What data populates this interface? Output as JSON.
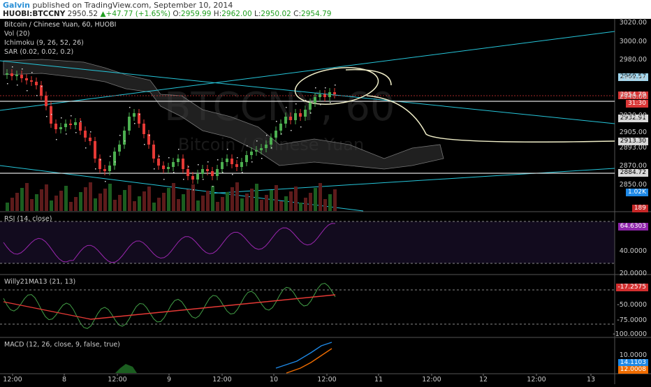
{
  "header": {
    "author": "Galvin",
    "published": "published on TradingView.com, September 10, 2014",
    "symbol": "HUOBI:BTCCNY",
    "last": "2950.52",
    "change": "+47.77 (+1.65%)",
    "o_label": "O:",
    "o": "2959.99",
    "h_label": "H:",
    "h": "2962.00",
    "l_label": "L:",
    "l": "2950.02",
    "c_label": "C:",
    "c": "2954.79"
  },
  "main_pane": {
    "title": "Bitcoin / Chinese Yuan, 60, HUOBI",
    "indicators": [
      "Vol (20)",
      "Ichimoku (9, 26, 52, 26)",
      "SAR (0.02, 0.02, 0.2)"
    ],
    "watermark": "BTCCNY, 60",
    "watermark_sub": "Bitcoin / Chinese Yuan",
    "price_ticks": [
      "3020.00",
      "3000.00",
      "2980.00",
      "2960.00",
      "2940.00",
      "2920.00",
      "2905.00",
      "2893.00",
      "2870.00",
      "2850.00"
    ],
    "price_tags": [
      {
        "text": "2969.57",
        "bg": "#9fd7f0",
        "fg": "#000"
      },
      {
        "text": "2954.79",
        "bg": "#d93636",
        "fg": "#fff"
      },
      {
        "text": "31:30",
        "bg": "#d93636",
        "fg": "#fff"
      },
      {
        "text": "2932.91",
        "bg": "#d9d9d9",
        "fg": "#000"
      },
      {
        "text": "2913.30",
        "bg": "#d9d9d9",
        "fg": "#000"
      },
      {
        "text": "2884.72",
        "bg": "#d9d9d9",
        "fg": "#000"
      },
      {
        "text": "1.02K",
        "bg": "#1e88e5",
        "fg": "#fff"
      },
      {
        "text": "189",
        "bg": "#c62828",
        "fg": "#fff"
      }
    ]
  },
  "rsi_pane": {
    "title": "RSI (14, close)",
    "ticks": [
      "40.0000",
      "20.0000"
    ],
    "value_tag": "64.6303",
    "value_color": "#8e24aa"
  },
  "willy_pane": {
    "title": "Willy21MA13 (21, 13)",
    "ticks": [
      "-50.0000",
      "-75.0000",
      "-100.0000"
    ],
    "value_tag": "-17.2575",
    "value_color": "#d32f2f"
  },
  "macd_pane": {
    "title": "MACD (12, 26, close, 9, false, true)",
    "ticks": [
      "10.0000"
    ],
    "tags": [
      {
        "text": "14.1103",
        "bg": "#1e88e5",
        "fg": "#fff"
      },
      {
        "text": "12.0008",
        "bg": "#ef6c00",
        "fg": "#fff"
      }
    ]
  },
  "time_axis": [
    "12:00",
    "8",
    "12:00",
    "9",
    "12:00",
    "10",
    "12:00",
    "11",
    "12:00",
    "12",
    "12:00",
    "13"
  ],
  "colors": {
    "bull": "#4caf50",
    "bear": "#e53935",
    "trend": "#26c6da",
    "rsi": "#9c27b0",
    "willy_fast": "#43a047",
    "willy_ma": "#e53935",
    "macd": "#1e88e5",
    "signal": "#ef6c00"
  }
}
